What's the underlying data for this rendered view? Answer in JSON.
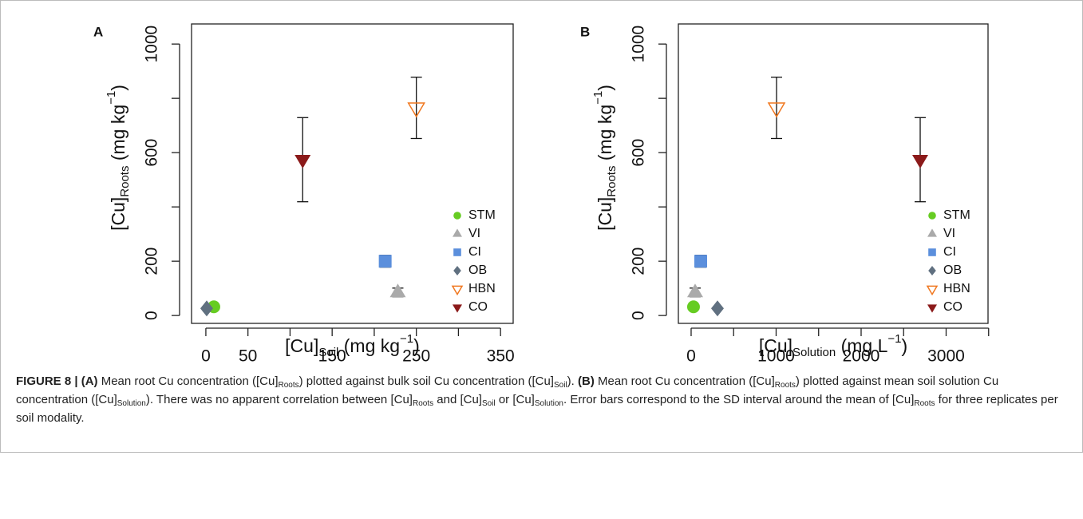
{
  "chart_data": [
    {
      "type": "scatter",
      "panel": "A",
      "xlabel": [
        "[Cu]",
        "Soil",
        " (mg kg",
        "−1",
        ")"
      ],
      "ylabel": [
        "[Cu]",
        "Roots",
        " (mg kg",
        "−1",
        ")"
      ],
      "xlim": [
        -17,
        365
      ],
      "ylim": [
        -29,
        1074
      ],
      "xticks": [
        0,
        50,
        {
          "value": 100,
          "label": null
        },
        150,
        {
          "value": 200,
          "label": null
        },
        250,
        {
          "value": 300,
          "label": null
        },
        350
      ],
      "yticks": [
        0,
        200,
        {
          "value": 400,
          "label": null
        },
        600,
        {
          "value": 800,
          "label": null
        },
        1000
      ],
      "legend": "bottomright",
      "series": [
        {
          "name": "STM",
          "color": "#66cc22",
          "marker": "circle",
          "x": [
            9.5
          ],
          "values": [
            32
          ],
          "errors": [
            null
          ]
        },
        {
          "name": "VI",
          "color": "#aaaaaa",
          "marker": "triangle",
          "x": [
            228
          ],
          "values": [
            85
          ],
          "errors": [
            16
          ]
        },
        {
          "name": "CI",
          "color": "#5b8fdc",
          "marker": "square",
          "x": [
            213
          ],
          "values": [
            200
          ],
          "errors": [
            22
          ]
        },
        {
          "name": "OB",
          "color": "#607080",
          "marker": "diamond",
          "x": [
            1
          ],
          "values": [
            26
          ],
          "errors": [
            null
          ]
        },
        {
          "name": "HBN",
          "color": "#f07820",
          "marker": "open-down-triangle",
          "x": [
            250
          ],
          "values": [
            765
          ],
          "errors": [
            113
          ]
        },
        {
          "name": "CO",
          "color": "#8b1a1a",
          "marker": "down-triangle",
          "x": [
            115
          ],
          "values": [
            574
          ],
          "errors": [
            155
          ]
        }
      ]
    },
    {
      "type": "scatter",
      "panel": "B",
      "xlabel": [
        "[Cu]",
        "Solution",
        " (mg L",
        "−1",
        ")"
      ],
      "ylabel": [
        "[Cu]",
        "Roots",
        " (mg kg",
        "−1",
        ")"
      ],
      "xlim": [
        -150,
        3493
      ],
      "ylim": [
        -29,
        1074
      ],
      "xticks": [
        0,
        {
          "value": 500,
          "label": null
        },
        1000,
        {
          "value": 1500,
          "label": null
        },
        2000,
        {
          "value": 2500,
          "label": null
        },
        3000,
        {
          "value": 3500,
          "label": null
        }
      ],
      "yticks": [
        0,
        200,
        {
          "value": 400,
          "label": null
        },
        600,
        {
          "value": 800,
          "label": null
        },
        1000
      ],
      "legend": "bottomright",
      "series": [
        {
          "name": "STM",
          "color": "#66cc22",
          "marker": "circle",
          "x": [
            28
          ],
          "values": [
            32
          ],
          "errors": [
            null
          ]
        },
        {
          "name": "VI",
          "color": "#aaaaaa",
          "marker": "triangle",
          "x": [
            47
          ],
          "values": [
            85
          ],
          "errors": [
            16
          ]
        },
        {
          "name": "CI",
          "color": "#5b8fdc",
          "marker": "square",
          "x": [
            113
          ],
          "values": [
            200
          ],
          "errors": [
            22
          ]
        },
        {
          "name": "OB",
          "color": "#607080",
          "marker": "diamond",
          "x": [
            310
          ],
          "values": [
            26
          ],
          "errors": [
            null
          ]
        },
        {
          "name": "HBN",
          "color": "#f07820",
          "marker": "open-down-triangle",
          "x": [
            1005
          ],
          "values": [
            765
          ],
          "errors": [
            113
          ]
        },
        {
          "name": "CO",
          "color": "#8b1a1a",
          "marker": "down-triangle",
          "x": [
            2695
          ],
          "values": [
            574
          ],
          "errors": [
            155
          ]
        }
      ]
    }
  ],
  "caption": [
    "FIGURE 8 | (A)",
    " Mean root Cu concentration ([Cu]",
    "Roots",
    ") plotted against bulk soil Cu concentration ([Cu]",
    "Soil",
    ").",
    "(B)",
    " Mean root Cu concentration ([Cu]",
    "Roots",
    ") plotted against mean soil solution Cu concentration ([Cu]",
    "Solution",
    "). There was no apparent correlation between [Cu]",
    "Roots",
    " and [Cu]",
    "Soil",
    " or [Cu]",
    "Solution",
    ". Error bars correspond to the SD interval around the mean of [Cu]",
    "Roots",
    " for three replicates per soil modality."
  ]
}
